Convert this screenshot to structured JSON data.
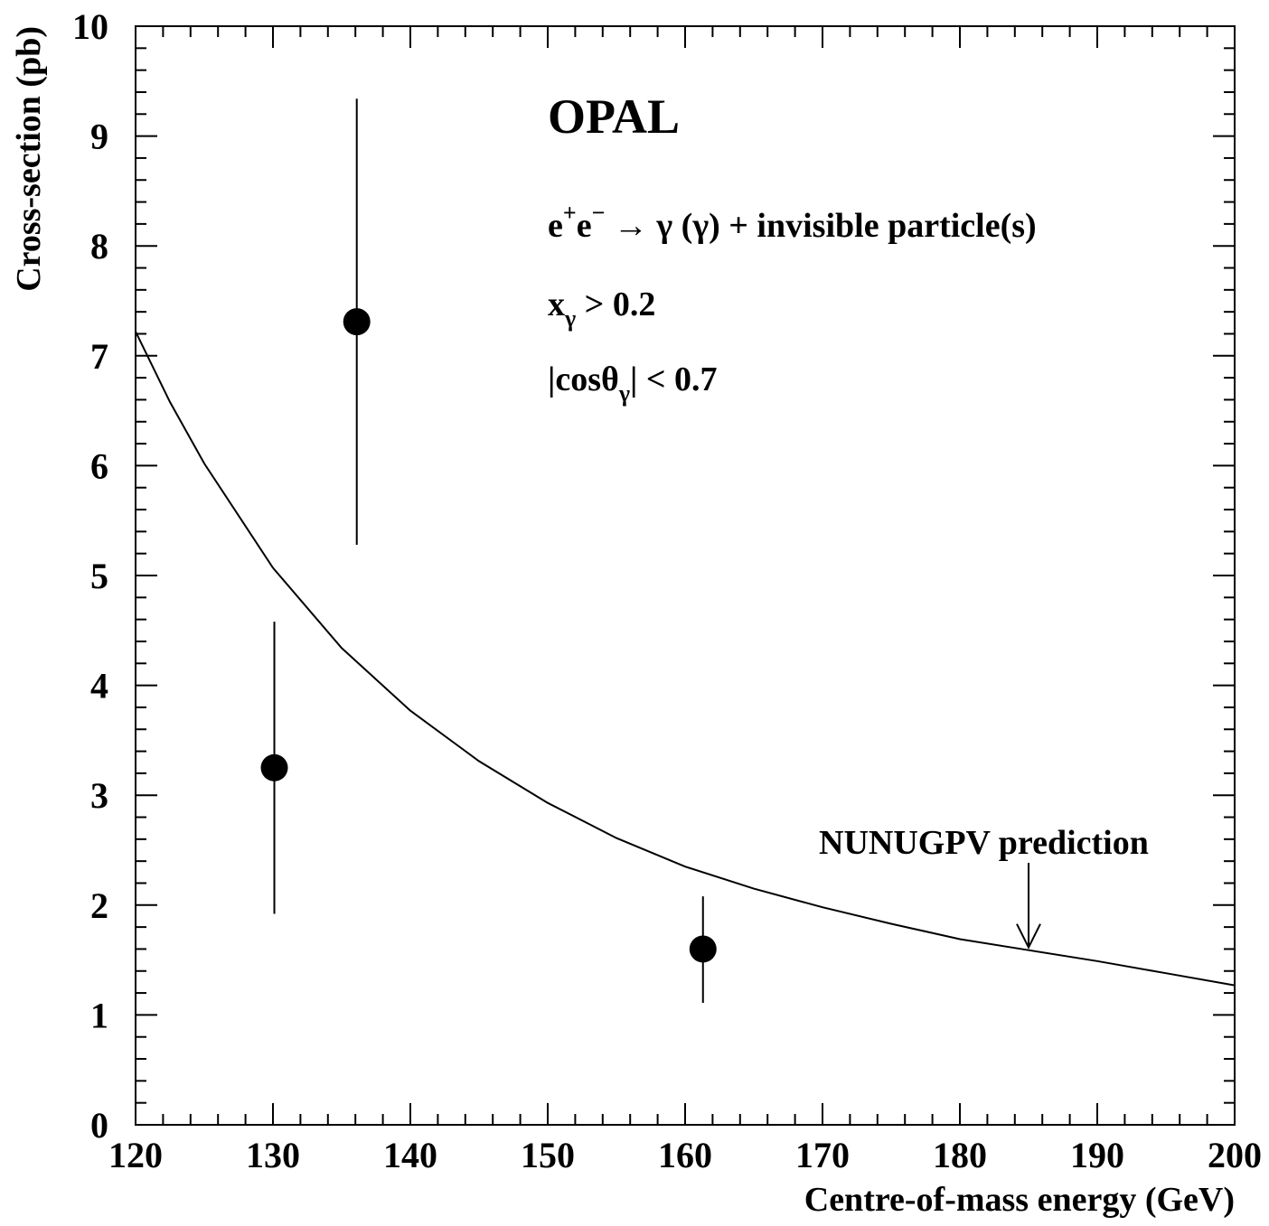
{
  "chart_data": {
    "type": "scatter",
    "title": "OPAL",
    "xlabel": "Centre-of-mass energy (GeV)",
    "ylabel": "Cross-section (pb)",
    "xlim": [
      120,
      200
    ],
    "ylim": [
      0,
      10
    ],
    "x_ticks": [
      "120",
      "130",
      "140",
      "150",
      "160",
      "170",
      "180",
      "190",
      "200"
    ],
    "y_ticks": [
      "0",
      "1",
      "2",
      "3",
      "4",
      "5",
      "6",
      "7",
      "8",
      "9",
      "10"
    ],
    "annotations": {
      "process_e": "e",
      "process_plus": "+",
      "process_e2": "e",
      "process_minus": "−",
      "process_rest": " → γ (γ) + invisible particle(s)",
      "cut1_x": "x",
      "cut1_sub": "γ",
      "cut1_rest": " > 0.2",
      "cut2_pre": "|cosθ",
      "cut2_sub": "γ",
      "cut2_rest": "| < 0.7",
      "prediction_label": "NUNUGPV prediction"
    },
    "measurements": [
      {
        "x": 130.1,
        "y": 3.25,
        "err_low": 1.33,
        "err_high": 1.33
      },
      {
        "x": 136.1,
        "y": 7.31,
        "err_low": 2.03,
        "err_high": 2.03
      },
      {
        "x": 161.3,
        "y": 1.6,
        "err_low": 0.49,
        "err_high": 0.48
      }
    ],
    "prediction_curve": {
      "x": [
        120,
        122.5,
        125,
        130,
        135,
        140,
        145,
        150,
        155,
        160,
        165,
        170,
        175,
        180,
        185,
        190,
        195,
        200
      ],
      "y": [
        7.22,
        6.58,
        6.02,
        5.07,
        4.34,
        3.77,
        3.31,
        2.93,
        2.61,
        2.35,
        2.15,
        1.98,
        1.83,
        1.69,
        1.59,
        1.49,
        1.38,
        1.27
      ]
    },
    "prediction_arrow_x": 185,
    "grid": false,
    "colors": {
      "line": "#000000",
      "marker": "#000000",
      "background": "#ffffff"
    }
  }
}
